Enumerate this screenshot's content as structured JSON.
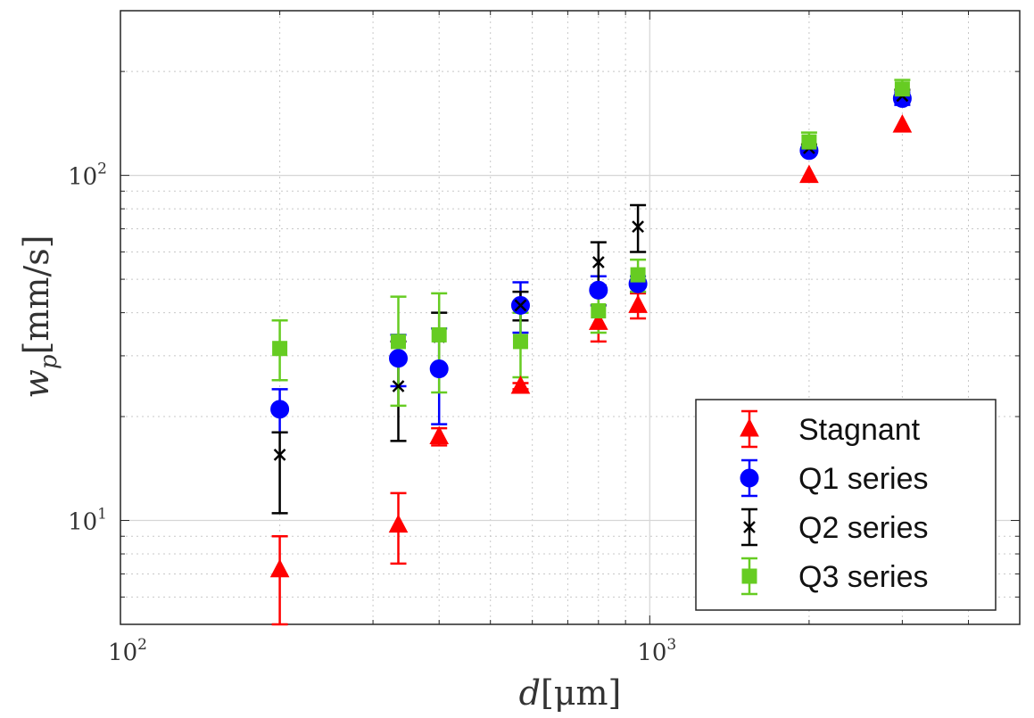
{
  "chart_data": {
    "type": "scatter",
    "title": "",
    "xscale": "log",
    "yscale": "log",
    "xlim": [
      100,
      5000
    ],
    "ylim": [
      5,
      300
    ],
    "grid": true,
    "minor_grid": true,
    "legend_position": "bottom-right",
    "xlabel": {
      "base": "d",
      "unit": "[μm]"
    },
    "ylabel": {
      "base": "w",
      "sub": "p",
      "unit": "[mm/s]"
    },
    "xticks": [
      {
        "value": 100,
        "base": "10",
        "exp": "2"
      },
      {
        "value": 1000,
        "base": "10",
        "exp": "3"
      }
    ],
    "yticks": [
      {
        "value": 10,
        "base": "10",
        "exp": "1"
      },
      {
        "value": 100,
        "base": "10",
        "exp": "2"
      }
    ],
    "series": [
      {
        "name": "Stagnant",
        "marker": "triangle",
        "color": "#ff0000",
        "points": [
          {
            "x": 200,
            "y": 7.2,
            "lo": 5.0,
            "hi": 9.0
          },
          {
            "x": 335,
            "y": 9.7,
            "lo": 7.5,
            "hi": 12.0
          },
          {
            "x": 400,
            "y": 17.5,
            "lo": 16.5,
            "hi": 18.5
          },
          {
            "x": 570,
            "y": 24.5,
            "lo": 24.0,
            "hi": 25.0
          },
          {
            "x": 800,
            "y": 37.5,
            "lo": 33.0,
            "hi": 42.0
          },
          {
            "x": 950,
            "y": 42.0,
            "lo": 38.5,
            "hi": 45.5
          },
          {
            "x": 2000,
            "y": 100,
            "lo": 100,
            "hi": 100
          },
          {
            "x": 3000,
            "y": 140,
            "lo": 140,
            "hi": 140
          }
        ]
      },
      {
        "name": "Q1 series",
        "marker": "circle",
        "color": "#0000ff",
        "points": [
          {
            "x": 200,
            "y": 21.0,
            "lo": 18.0,
            "hi": 24.0
          },
          {
            "x": 335,
            "y": 29.5,
            "lo": 24.5,
            "hi": 34.5
          },
          {
            "x": 400,
            "y": 27.5,
            "lo": 19.0,
            "hi": 36.0
          },
          {
            "x": 570,
            "y": 42.0,
            "lo": 35.0,
            "hi": 49.0
          },
          {
            "x": 800,
            "y": 46.5,
            "lo": 42.0,
            "hi": 51.0
          },
          {
            "x": 950,
            "y": 48.5,
            "lo": 46.0,
            "hi": 51.0
          },
          {
            "x": 2000,
            "y": 118,
            "lo": 115,
            "hi": 121
          },
          {
            "x": 3000,
            "y": 167,
            "lo": 160,
            "hi": 174
          }
        ]
      },
      {
        "name": "Q2 series",
        "marker": "x",
        "color": "#000000",
        "points": [
          {
            "x": 200,
            "y": 15.5,
            "lo": 10.5,
            "hi": 18.0
          },
          {
            "x": 335,
            "y": 24.5,
            "lo": 17.0,
            "hi": 33.0
          },
          {
            "x": 400,
            "y": 34.0,
            "lo": 28.0,
            "hi": 40.0
          },
          {
            "x": 570,
            "y": 42.0,
            "lo": 38.0,
            "hi": 46.0
          },
          {
            "x": 800,
            "y": 56.0,
            "lo": 48.0,
            "hi": 64.0
          },
          {
            "x": 950,
            "y": 71.0,
            "lo": 60.0,
            "hi": 82.0
          },
          {
            "x": 2000,
            "y": 120,
            "lo": 117,
            "hi": 123
          },
          {
            "x": 3000,
            "y": 170,
            "lo": 163,
            "hi": 177
          }
        ]
      },
      {
        "name": "Q3 series",
        "marker": "square",
        "color": "#66cc22",
        "points": [
          {
            "x": 200,
            "y": 31.5,
            "lo": 25.5,
            "hi": 38.0
          },
          {
            "x": 335,
            "y": 33.0,
            "lo": 21.5,
            "hi": 44.5
          },
          {
            "x": 400,
            "y": 34.5,
            "lo": 23.5,
            "hi": 45.5
          },
          {
            "x": 570,
            "y": 33.0,
            "lo": 26.0,
            "hi": 40.0
          },
          {
            "x": 800,
            "y": 40.5,
            "lo": 35.0,
            "hi": 46.0
          },
          {
            "x": 950,
            "y": 51.5,
            "lo": 46.0,
            "hi": 57.0
          },
          {
            "x": 2000,
            "y": 125,
            "lo": 117,
            "hi": 133
          },
          {
            "x": 3000,
            "y": 178,
            "lo": 167,
            "hi": 189
          }
        ]
      }
    ]
  }
}
